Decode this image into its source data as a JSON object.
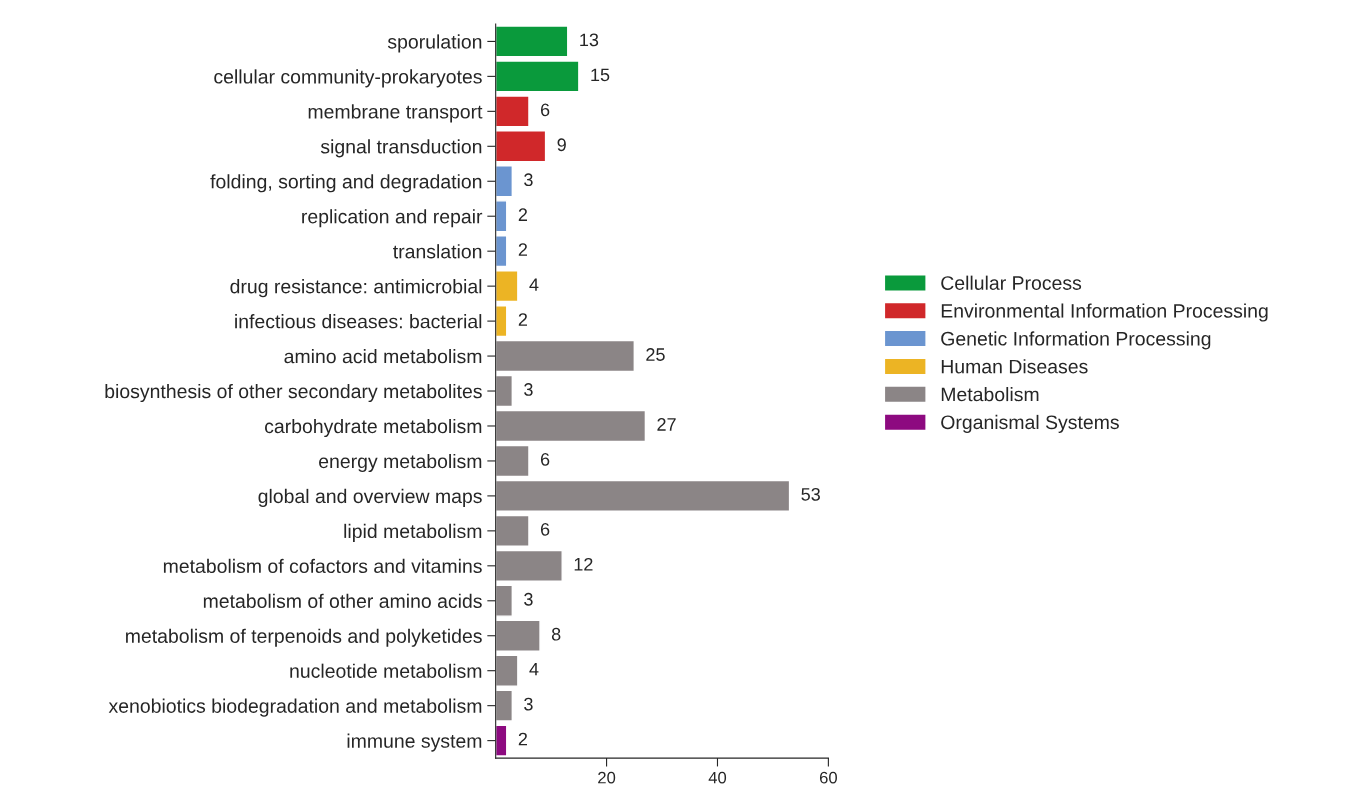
{
  "chart_data": {
    "type": "bar",
    "orientation": "horizontal",
    "categories": [
      "sporulation",
      "cellular community-prokaryotes",
      "membrane transport",
      "signal transduction",
      "folding, sorting and degradation",
      "replication and repair",
      "translation",
      "drug resistance: antimicrobial",
      "infectious diseases: bacterial",
      "amino acid metabolism",
      "biosynthesis of other secondary metabolites",
      "carbohydrate metabolism",
      "energy metabolism",
      "global and overview maps",
      "lipid metabolism",
      "metabolism of cofactors and vitamins",
      "metabolism of other amino acids",
      "metabolism of terpenoids and polyketides",
      "nucleotide metabolism",
      "xenobiotics biodegradation and metabolism",
      "immune system"
    ],
    "series": [
      {
        "name": "Cellular Process",
        "color": "#0a9a3c",
        "values": [
          13,
          15,
          null,
          null,
          null,
          null,
          null,
          null,
          null,
          null,
          null,
          null,
          null,
          null,
          null,
          null,
          null,
          null,
          null,
          null,
          null
        ]
      },
      {
        "name": "Environmental Information Processing",
        "color": "#d0282a",
        "values": [
          null,
          null,
          6,
          9,
          null,
          null,
          null,
          null,
          null,
          null,
          null,
          null,
          null,
          null,
          null,
          null,
          null,
          null,
          null,
          null,
          null
        ]
      },
      {
        "name": "Genetic Information Processing",
        "color": "#6b95d0",
        "values": [
          null,
          null,
          null,
          null,
          3,
          2,
          2,
          null,
          null,
          null,
          null,
          null,
          null,
          null,
          null,
          null,
          null,
          null,
          null,
          null,
          null
        ]
      },
      {
        "name": "Human Diseases",
        "color": "#ecb424",
        "values": [
          null,
          null,
          null,
          null,
          null,
          null,
          null,
          4,
          2,
          null,
          null,
          null,
          null,
          null,
          null,
          null,
          null,
          null,
          null,
          null,
          null
        ]
      },
      {
        "name": "Metabolism",
        "color": "#8b8586",
        "values": [
          null,
          null,
          null,
          null,
          null,
          null,
          null,
          null,
          null,
          25,
          3,
          27,
          6,
          53,
          6,
          12,
          3,
          8,
          4,
          3,
          null
        ]
      },
      {
        "name": "Organismal Systems",
        "color": "#8d0a80",
        "values": [
          null,
          null,
          null,
          null,
          null,
          null,
          null,
          null,
          null,
          null,
          null,
          null,
          null,
          null,
          null,
          null,
          null,
          null,
          null,
          null,
          2
        ]
      }
    ],
    "xlim": [
      0,
      60
    ],
    "xticks": [
      20,
      40,
      60
    ],
    "data_labels": true,
    "grid": false,
    "legend": "right"
  }
}
